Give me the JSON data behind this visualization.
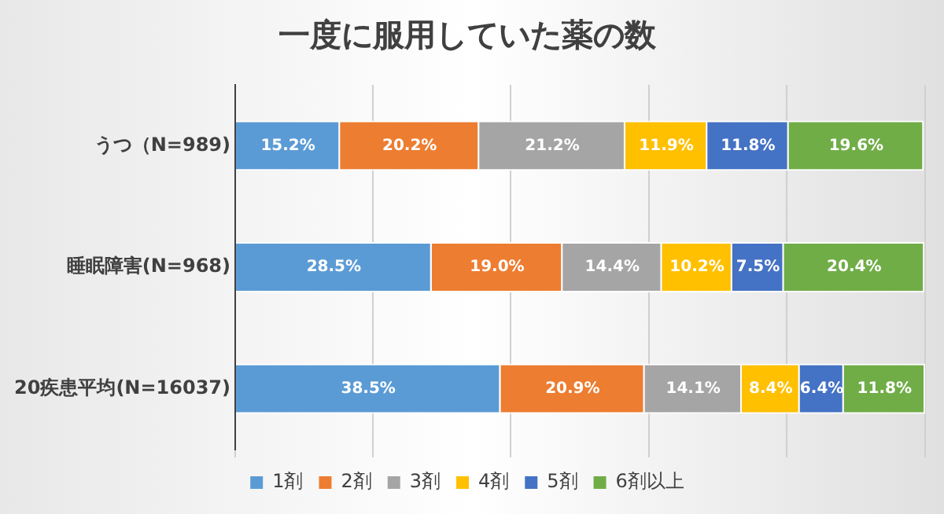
{
  "chart_data": {
    "type": "bar",
    "orientation": "horizontal",
    "stacked": true,
    "title": "一度に服用していた薬の数",
    "categories": [
      "うつ（N=989)",
      "睡眠障害(N=968)",
      "20疾患平均(N=16037)"
    ],
    "series": [
      {
        "name": "1剤",
        "color": "#5b9bd5",
        "values": [
          15.2,
          28.5,
          38.5
        ],
        "value_labels": [
          "15.2%",
          "28.5%",
          "38.5%"
        ]
      },
      {
        "name": "2剤",
        "color": "#ed7d31",
        "values": [
          20.2,
          19.0,
          20.9
        ],
        "value_labels": [
          "20.2%",
          "19.0%",
          "20.9%"
        ]
      },
      {
        "name": "3剤",
        "color": "#a5a5a5",
        "values": [
          21.2,
          14.4,
          14.1
        ],
        "value_labels": [
          "21.2%",
          "14.4%",
          "14.1%"
        ]
      },
      {
        "name": "4剤",
        "color": "#ffc000",
        "values": [
          11.9,
          10.2,
          8.4
        ],
        "value_labels": [
          "11.9%",
          "10.2%",
          "8.4%"
        ]
      },
      {
        "name": "5剤",
        "color": "#4472c4",
        "values": [
          11.8,
          7.5,
          6.4
        ],
        "value_labels": [
          "11.8%",
          "7.5%",
          "6.4%"
        ]
      },
      {
        "name": "6剤以上",
        "color": "#70ad47",
        "values": [
          19.6,
          20.4,
          11.8
        ],
        "value_labels": [
          "19.6%",
          "20.4%",
          "11.8%"
        ]
      }
    ],
    "tick_labels": "y",
    "grid": "x",
    "legend": "bottom"
  }
}
